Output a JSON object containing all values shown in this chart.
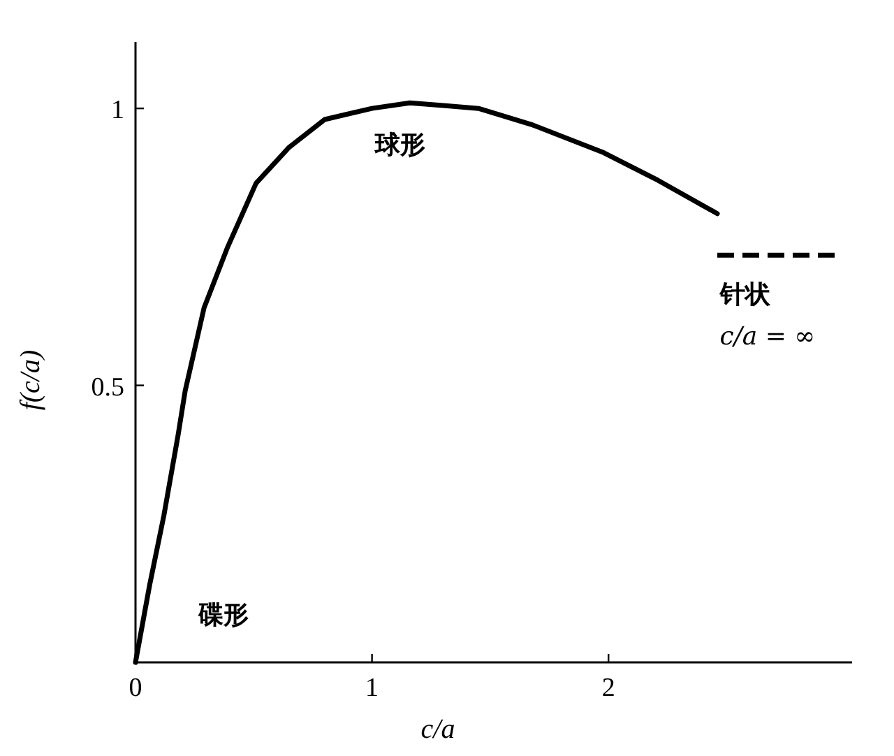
{
  "chart_data": {
    "type": "line",
    "xlabel": "c/a",
    "ylabel": "f(c/a)",
    "xlim": [
      0,
      3.03
    ],
    "ylim": [
      0,
      1.12
    ],
    "xticks": [
      0,
      1,
      2
    ],
    "yticks": [
      0.5,
      1
    ],
    "grid": false,
    "legend": false,
    "marker": "none",
    "series": [
      {
        "color": "#000000",
        "line_style": "solid",
        "x": [
          0,
          0.06,
          0.12,
          0.18,
          0.21,
          0.29,
          0.39,
          0.51,
          0.65,
          0.8,
          1.0,
          1.16,
          1.31,
          1.45,
          1.68,
          1.98,
          2.21,
          2.46
        ],
        "values": [
          0,
          0.14,
          0.265,
          0.41,
          0.49,
          0.64,
          0.75,
          0.865,
          0.93,
          0.98,
          1.0,
          1.01,
          1.005,
          1.0,
          0.97,
          0.92,
          0.87,
          0.81
        ]
      },
      {
        "name": "针状",
        "color": "#000000",
        "line_style": "dashed",
        "x": [
          2.46,
          2.97
        ],
        "values": [
          0.735,
          0.735
        ]
      }
    ],
    "annotations": [
      {
        "text": "碟形",
        "x": 0,
        "y": 0
      },
      {
        "text": "球形",
        "x": 1.16,
        "y": 1.01
      },
      {
        "text": "c/a = ∞",
        "x": 2.46,
        "y": 0.735
      }
    ]
  }
}
